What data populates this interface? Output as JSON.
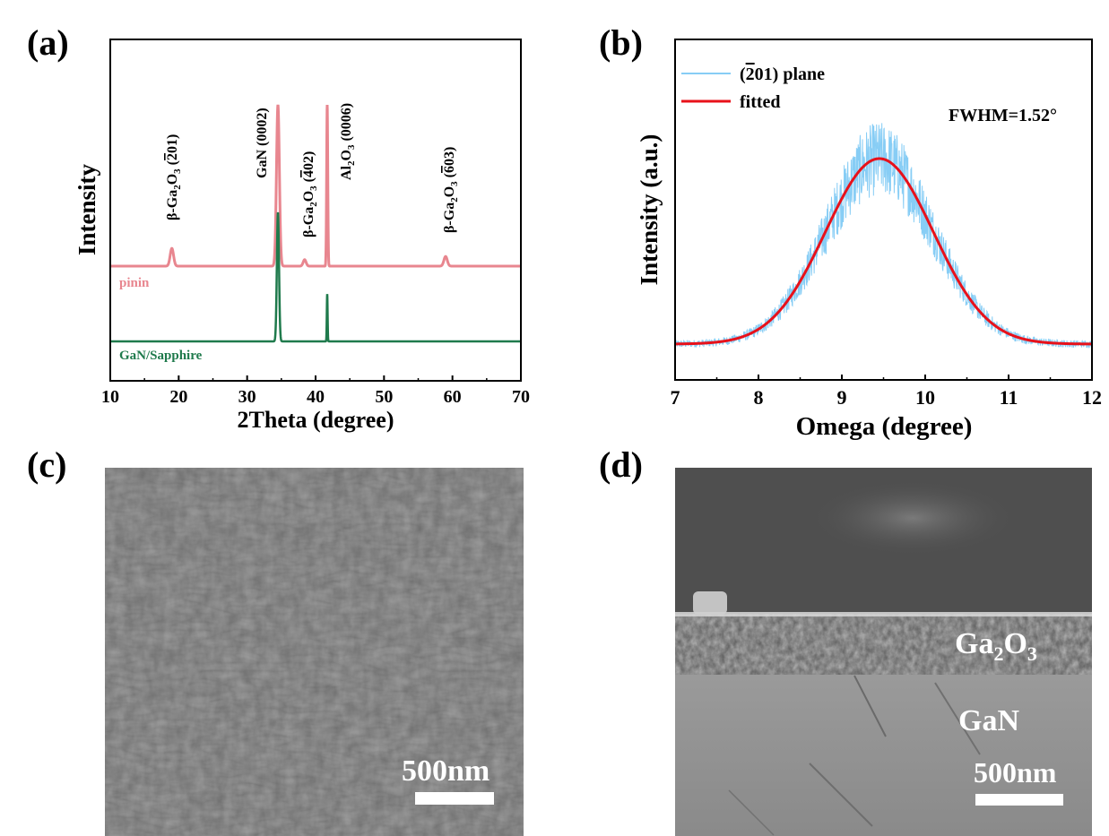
{
  "panels": {
    "a": {
      "label": "(a)",
      "ylabel": "Intensity",
      "xlabel": "2Theta (degree)",
      "xticks": [
        "10",
        "20",
        "30",
        "40",
        "50",
        "60",
        "70"
      ],
      "series_labels": {
        "pinin": "pinin",
        "gan": "GaN/Sapphire"
      },
      "colors": {
        "pinin": "#e8868f",
        "gan": "#1f7a4c"
      }
    },
    "b": {
      "label": "(b)",
      "ylabel": "Intensity (a.u.)",
      "xlabel": "Omega (degree)",
      "xticks": [
        "7",
        "8",
        "9",
        "10",
        "11",
        "12"
      ],
      "legend_raw": "(2̄01) plane",
      "legend_fit": "fitted",
      "fwhm": "FWHM=1.52°",
      "colors": {
        "raw": "#87cdf5",
        "fit": "#e8111a"
      }
    },
    "c": {
      "label": "(c)",
      "scalebar": "500nm"
    },
    "d": {
      "label": "(d)",
      "scalebar": "500nm",
      "layer_top": "Ga2O3",
      "layer_bottom": "GaN"
    }
  },
  "chart_data": [
    {
      "type": "line",
      "panel": "a",
      "xlim": [
        10,
        70
      ],
      "xlabel": "2Theta (degree)",
      "ylabel": "Intensity",
      "grid": false,
      "series": [
        {
          "name": "pinin",
          "peaks": [
            {
              "x": 19.0,
              "height": 0.33,
              "width": 0.35
            },
            {
              "x": 34.5,
              "height": 3.0,
              "width": 0.3
            },
            {
              "x": 38.4,
              "height": 0.12,
              "width": 0.3
            },
            {
              "x": 41.7,
              "height": 3.0,
              "width": 0.12
            },
            {
              "x": 59.0,
              "height": 0.18,
              "width": 0.35
            }
          ]
        },
        {
          "name": "GaN/Sapphire",
          "peaks": [
            {
              "x": 34.5,
              "height": 2.4,
              "width": 0.22
            },
            {
              "x": 41.7,
              "height": 0.88,
              "width": 0.08
            }
          ]
        }
      ],
      "annotations": [
        {
          "x": 19.0,
          "text": "β-Ga₂O₃ (2̄01)"
        },
        {
          "x": 34.5,
          "text": "GaN (0002)"
        },
        {
          "x": 38.4,
          "text": "β-Ga₂O₃ (4̄02)"
        },
        {
          "x": 41.7,
          "text": "Al₂O₃ (0006)"
        },
        {
          "x": 59.0,
          "text": "β-Ga₂O₃ (6̄03)"
        }
      ]
    },
    {
      "type": "line",
      "panel": "b",
      "xlim": [
        7,
        12
      ],
      "xlabel": "Omega (degree)",
      "ylabel": "Intensity (a.u.)",
      "grid": false,
      "legend": "top-left",
      "series": [
        {
          "name": "(2̄01) plane",
          "type": "noisy",
          "center": 9.45,
          "fwhm": 1.52,
          "amplitude": 1.0,
          "baseline": 0.02,
          "noise": 0.18
        },
        {
          "name": "fitted",
          "type": "gaussian",
          "center": 9.45,
          "fwhm": 1.52,
          "amplitude": 1.0,
          "baseline": 0.02
        }
      ]
    }
  ]
}
